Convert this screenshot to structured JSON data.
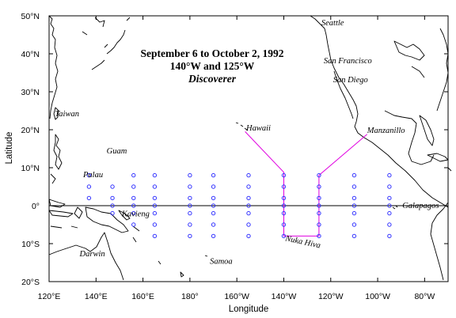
{
  "title": {
    "line1": "September 6 to October 2, 1992",
    "line2": "140°W and 125°W",
    "line3": "Discoverer"
  },
  "axes": {
    "xlabel": "Longitude",
    "ylabel": "Latitude",
    "xlim": [
      120,
      290
    ],
    "ylim": [
      -20,
      50
    ],
    "x_ticks": [
      {
        "value": 120,
        "label": "120°E"
      },
      {
        "value": 140,
        "label": "140°E"
      },
      {
        "value": 160,
        "label": "160°E"
      },
      {
        "value": 180,
        "label": "180°"
      },
      {
        "value": 200,
        "label": "160°W"
      },
      {
        "value": 220,
        "label": "140°W"
      },
      {
        "value": 240,
        "label": "120°W"
      },
      {
        "value": 260,
        "label": "100°W"
      },
      {
        "value": 280,
        "label": "80°W"
      }
    ],
    "y_ticks": [
      {
        "value": 50,
        "label": "50°N"
      },
      {
        "value": 40,
        "label": "40°N"
      },
      {
        "value": 30,
        "label": "30°N"
      },
      {
        "value": 20,
        "label": "20°N"
      },
      {
        "value": 10,
        "label": "10°N"
      },
      {
        "value": 0,
        "label": "0°"
      },
      {
        "value": -10,
        "label": "10°S"
      },
      {
        "value": -20,
        "label": "20°S"
      }
    ]
  },
  "places": [
    {
      "name": "Seattle",
      "lon": 236,
      "lat": 47.5
    },
    {
      "name": "San Francisco",
      "lon": 237,
      "lat": 37.5
    },
    {
      "name": "San Diego",
      "lon": 241,
      "lat": 32.5
    },
    {
      "name": "Taiwan",
      "lon": 122.5,
      "lat": 23.5
    },
    {
      "name": "Hawaii",
      "lon": 204,
      "lat": 19.8
    },
    {
      "name": "Manzanillo",
      "lon": 255.5,
      "lat": 19.2
    },
    {
      "name": "Guam",
      "lon": 144.5,
      "lat": 13.7
    },
    {
      "name": "Palau",
      "lon": 134.5,
      "lat": 7.5
    },
    {
      "name": "Galapagos",
      "lon": 270.5,
      "lat": -0.6
    },
    {
      "name": "Kavieng",
      "lon": 151,
      "lat": -2.8
    },
    {
      "name": "Nuka Hiva",
      "lon": 220.5,
      "lat": -9.2
    },
    {
      "name": "Darwin",
      "lon": 133,
      "lat": -13.3
    },
    {
      "name": "Samoa",
      "lon": 188.5,
      "lat": -15.3
    }
  ],
  "cruise_track": [
    {
      "lon": 203.5,
      "lat": 19.5
    },
    {
      "lon": 220,
      "lat": 8.8
    },
    {
      "lon": 220,
      "lat": -8
    },
    {
      "lon": 235,
      "lat": -8
    },
    {
      "lon": 235,
      "lat": 8
    },
    {
      "lon": 255.5,
      "lat": 18.8
    }
  ],
  "station_lines": [
    {
      "lon": 137,
      "lats": [
        8,
        5,
        2
      ]
    },
    {
      "lon": 147,
      "lats": [
        5,
        2,
        0,
        -2
      ]
    },
    {
      "lon": 156,
      "lats": [
        8,
        5,
        2,
        0,
        -2,
        -5
      ]
    },
    {
      "lon": 165,
      "lats": [
        8,
        5,
        2,
        0,
        -2,
        -5,
        -8
      ]
    },
    {
      "lon": 180,
      "lats": [
        8,
        5,
        2,
        0,
        -2,
        -5,
        -8
      ]
    },
    {
      "lon": 190,
      "lats": [
        8,
        5,
        2,
        0,
        -2,
        -5,
        -8
      ]
    },
    {
      "lon": 205,
      "lats": [
        8,
        5,
        2,
        0,
        -2,
        -5,
        -8
      ]
    },
    {
      "lon": 220,
      "lats": [
        8,
        5,
        2,
        0,
        -2,
        -5,
        -8
      ]
    },
    {
      "lon": 235,
      "lats": [
        8,
        5,
        2,
        0,
        -2,
        -5,
        -8
      ]
    },
    {
      "lon": 250,
      "lats": [
        8,
        5,
        2,
        0,
        -2,
        -5,
        -8
      ]
    },
    {
      "lon": 265,
      "lats": [
        8,
        5,
        2,
        0,
        -2,
        -5,
        -8
      ]
    }
  ],
  "colors": {
    "track": "#e000e0",
    "station": "#3333ff",
    "coast": "#000000"
  }
}
